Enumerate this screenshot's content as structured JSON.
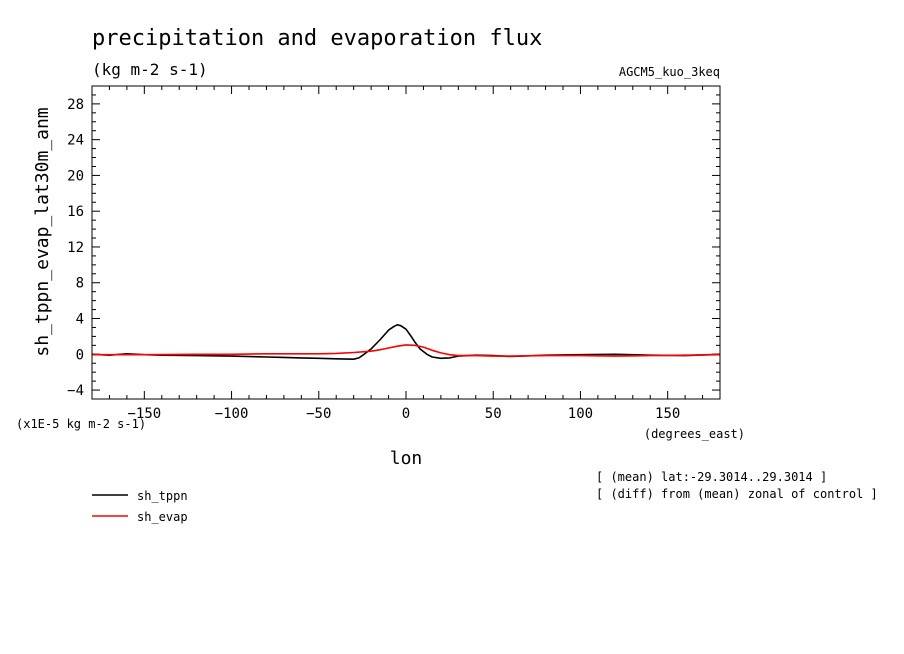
{
  "chart_data": {
    "type": "line",
    "title": "precipitation and evaporation flux",
    "subtitle": "(kg m-2 s-1)",
    "run_label": "AGCM5_kuo_3keq",
    "ylabel": "sh_tppn_evap_lat30m_anm",
    "xlabel": "lon",
    "xunits": "(degrees_east)",
    "yscale_note": "(x1E-5 kg m-2 s-1)",
    "xlim": [
      -180,
      180
    ],
    "ylim": [
      -5,
      30
    ],
    "xticks": [
      -150,
      -100,
      -50,
      0,
      50,
      100,
      150
    ],
    "yticks": [
      -4,
      0,
      4,
      8,
      12,
      16,
      20,
      24,
      28
    ],
    "info_lines": [
      "[ (mean) lat:-29.3014..29.3014 ]",
      "[ (diff) from (mean) zonal of control ]"
    ],
    "legend_position": "bottom-left",
    "series": [
      {
        "name": "sh_tppn",
        "color": "#000000",
        "x": [
          -180,
          -170,
          -160,
          -150,
          -140,
          -120,
          -100,
          -80,
          -70,
          -60,
          -50,
          -40,
          -30,
          -27,
          -24,
          -20,
          -15,
          -10,
          -7,
          -5,
          -3,
          0,
          3,
          5,
          8,
          12,
          15,
          20,
          25,
          30,
          40,
          50,
          60,
          80,
          100,
          120,
          140,
          160,
          180
        ],
        "y": [
          0.0,
          -0.1,
          0.05,
          -0.05,
          -0.1,
          -0.15,
          -0.2,
          -0.3,
          -0.35,
          -0.4,
          -0.45,
          -0.5,
          -0.55,
          -0.4,
          0.0,
          0.6,
          1.6,
          2.7,
          3.1,
          3.3,
          3.2,
          2.8,
          2.0,
          1.4,
          0.6,
          0.0,
          -0.3,
          -0.45,
          -0.4,
          -0.2,
          -0.1,
          -0.15,
          -0.25,
          -0.1,
          -0.05,
          0.0,
          -0.1,
          -0.15,
          0.0
        ]
      },
      {
        "name": "sh_evap",
        "color": "#ff0000",
        "x": [
          -180,
          -150,
          -120,
          -100,
          -80,
          -60,
          -50,
          -40,
          -30,
          -20,
          -15,
          -10,
          -5,
          0,
          5,
          10,
          15,
          20,
          25,
          30,
          40,
          50,
          60,
          80,
          100,
          120,
          140,
          160,
          180
        ],
        "y": [
          -0.05,
          -0.05,
          0.0,
          0.0,
          0.05,
          0.05,
          0.05,
          0.1,
          0.2,
          0.35,
          0.5,
          0.7,
          0.9,
          1.05,
          1.0,
          0.8,
          0.45,
          0.15,
          -0.05,
          -0.15,
          -0.15,
          -0.2,
          -0.2,
          -0.15,
          -0.15,
          -0.2,
          -0.15,
          -0.1,
          -0.05
        ]
      }
    ]
  }
}
